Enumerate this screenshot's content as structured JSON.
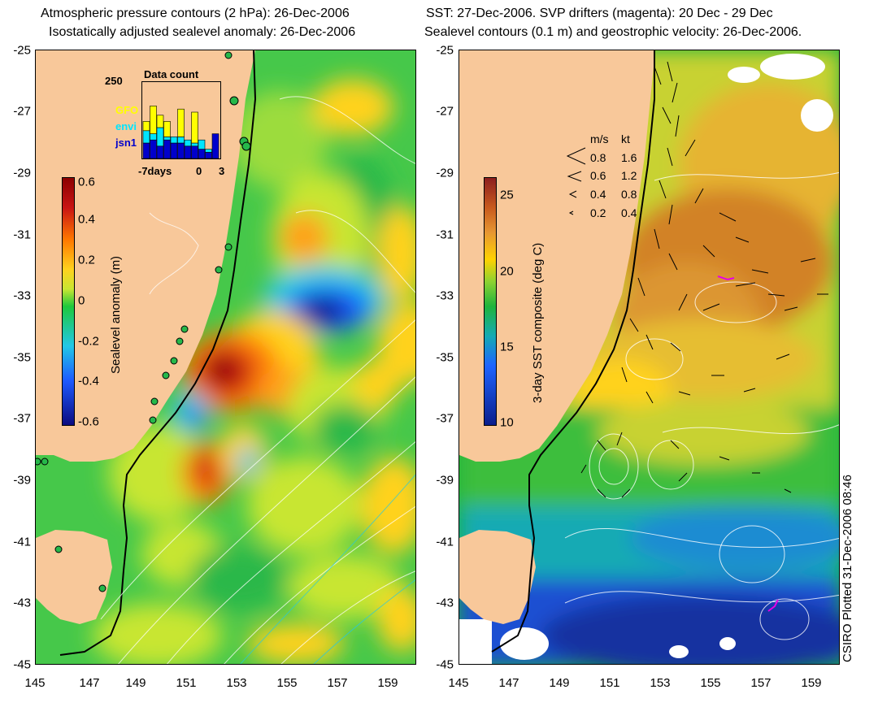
{
  "left_panel": {
    "title_line1": "Atmospheric pressure contours (2 hPa): 26-Dec-2006",
    "title_line2": "Isostatically adjusted sealevel anomaly: 26-Dec-2006",
    "colorbar": {
      "label": "Sealevel anomaly (m)",
      "ticks": [
        "0.6",
        "0.4",
        "0.2",
        "0",
        "-0.2",
        "-0.4",
        "-0.6"
      ]
    },
    "inset": {
      "title": "Data count",
      "y_max_label": "250",
      "legend": [
        {
          "name": "GFO",
          "color": "#ffff00"
        },
        {
          "name": "envi",
          "color": "#00e5ff"
        },
        {
          "name": "jsn1",
          "color": "#0000cc"
        }
      ],
      "x_labels": [
        "-7days",
        "0",
        "3"
      ],
      "bars": [
        {
          "gfo": 30,
          "envi": 40,
          "jsn1": 50
        },
        {
          "gfo": 90,
          "envi": 20,
          "jsn1": 60
        },
        {
          "gfo": 40,
          "envi": 60,
          "jsn1": 40
        },
        {
          "gfo": 50,
          "envi": 10,
          "jsn1": 60
        },
        {
          "gfo": 0,
          "envi": 20,
          "jsn1": 50
        },
        {
          "gfo": 90,
          "envi": 20,
          "jsn1": 50
        },
        {
          "gfo": 0,
          "envi": 20,
          "jsn1": 40
        },
        {
          "gfo": 100,
          "envi": 10,
          "jsn1": 40
        },
        {
          "gfo": 0,
          "envi": 30,
          "jsn1": 30
        },
        {
          "gfo": 0,
          "envi": 10,
          "jsn1": 20
        },
        {
          "gfo": 0,
          "envi": 0,
          "jsn1": 80
        }
      ]
    }
  },
  "right_panel": {
    "title_line1": "SST: 27-Dec-2006. SVP drifters (magenta): 20 Dec - 29 Dec",
    "title_line2": "Sealevel contours (0.1 m) and geostrophic velocity: 26-Dec-2006.",
    "colorbar": {
      "label": "3-day SST composite (deg C)",
      "ticks": [
        "25",
        "20",
        "15",
        "10"
      ]
    },
    "velocity_legend": {
      "header_ms": "m/s",
      "header_kt": "kt",
      "rows": [
        {
          "ms": "0.8",
          "kt": "1.6"
        },
        {
          "ms": "0.6",
          "kt": "1.2"
        },
        {
          "ms": "0.4",
          "kt": "0.8"
        },
        {
          "ms": "0.2",
          "kt": "0.4"
        }
      ]
    }
  },
  "axes": {
    "x_ticks": [
      "145",
      "147",
      "149",
      "151",
      "153",
      "155",
      "157",
      "159"
    ],
    "y_ticks": [
      "-25",
      "-27",
      "-29",
      "-31",
      "-33",
      "-35",
      "-37",
      "-39",
      "-41",
      "-43",
      "-45"
    ]
  },
  "credit": "CSIRO Plotted 31-Dec-2006 08:46",
  "colors": {
    "land": "#f8c89a",
    "sla_ramp": [
      "#0b0b80",
      "#1e5aff",
      "#22c8e6",
      "#1ec83c",
      "#c8e632",
      "#ffd21e",
      "#ff7800",
      "#c81414",
      "#8c0000"
    ],
    "sst_ramp": [
      "#0a1e8c",
      "#1e64ff",
      "#14aab4",
      "#1eb43c",
      "#8cd232",
      "#ffd200",
      "#e69632",
      "#c85a1e",
      "#8c1e1e"
    ]
  }
}
